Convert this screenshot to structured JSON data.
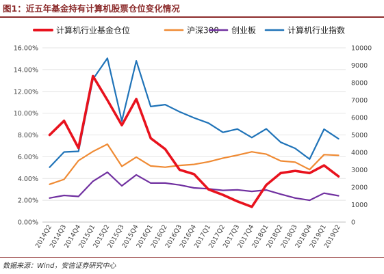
{
  "figure": {
    "label": "图1：",
    "title": "近五年基金持有计算机股票仓位变化情况",
    "source": "数据来源：Wind，安信证券研究中心"
  },
  "colors": {
    "fund_position": "#e8121d",
    "hs300": "#ef8a33",
    "chinext": "#7030a0",
    "it_index": "#1f73b8",
    "title_rule": "#8b2a2a"
  },
  "chart_data": {
    "type": "line",
    "x": [
      "2014Q2",
      "2014Q3",
      "2014Q4",
      "2015Q1",
      "2015Q2",
      "2015Q3",
      "2015Q4",
      "2016Q1",
      "2016Q2",
      "2016Q3",
      "2016Q4",
      "2017Q1",
      "2017Q2",
      "2017Q3",
      "2017Q4",
      "2018Q1",
      "2018Q2",
      "2018Q3",
      "2018Q4",
      "2019Q1",
      "2019Q2"
    ],
    "y_left": {
      "ticks": [
        "0.00%",
        "2.00%",
        "4.00%",
        "6.00%",
        "8.00%",
        "10.00%",
        "12.00%",
        "14.00%",
        "16.00%"
      ],
      "ylim": [
        0,
        16
      ]
    },
    "y_right": {
      "ticks": [
        "0",
        "1000",
        "2000",
        "3000",
        "4000",
        "5000",
        "6000",
        "7000",
        "8000",
        "9000",
        "10000"
      ],
      "ylim": [
        0,
        10000
      ]
    },
    "grid": true,
    "legend_position": "top",
    "series": [
      {
        "name": "计算机行业基金仓位",
        "axis": "left",
        "color_key": "fund_position",
        "values": [
          8.0,
          9.3,
          6.8,
          13.4,
          11.2,
          8.9,
          11.3,
          7.7,
          6.7,
          4.8,
          4.4,
          3.0,
          2.5,
          1.9,
          1.4,
          3.4,
          4.5,
          4.7,
          4.5,
          5.2,
          4.2
        ]
      },
      {
        "name": "沪深300",
        "axis": "right",
        "color_key": "hs300",
        "values": [
          2170,
          2450,
          3530,
          4050,
          4470,
          3200,
          3730,
          3220,
          3150,
          3250,
          3310,
          3460,
          3670,
          3840,
          4030,
          3900,
          3510,
          3440,
          3010,
          3870,
          3830
        ]
      },
      {
        "name": "创业板",
        "axis": "right",
        "color_key": "chinext",
        "values": [
          1380,
          1530,
          1470,
          2340,
          2860,
          2080,
          2710,
          2240,
          2240,
          2130,
          1960,
          1910,
          1820,
          1850,
          1760,
          1840,
          1600,
          1380,
          1250,
          1660,
          1510
        ]
      },
      {
        "name": "计算机行业指数",
        "axis": "right",
        "color_key": "it_index",
        "values": [
          3150,
          4020,
          4060,
          8200,
          9400,
          5800,
          9250,
          6630,
          6740,
          6330,
          5980,
          5680,
          5150,
          5340,
          4850,
          5350,
          4580,
          4230,
          3610,
          5330,
          4780
        ]
      }
    ]
  }
}
